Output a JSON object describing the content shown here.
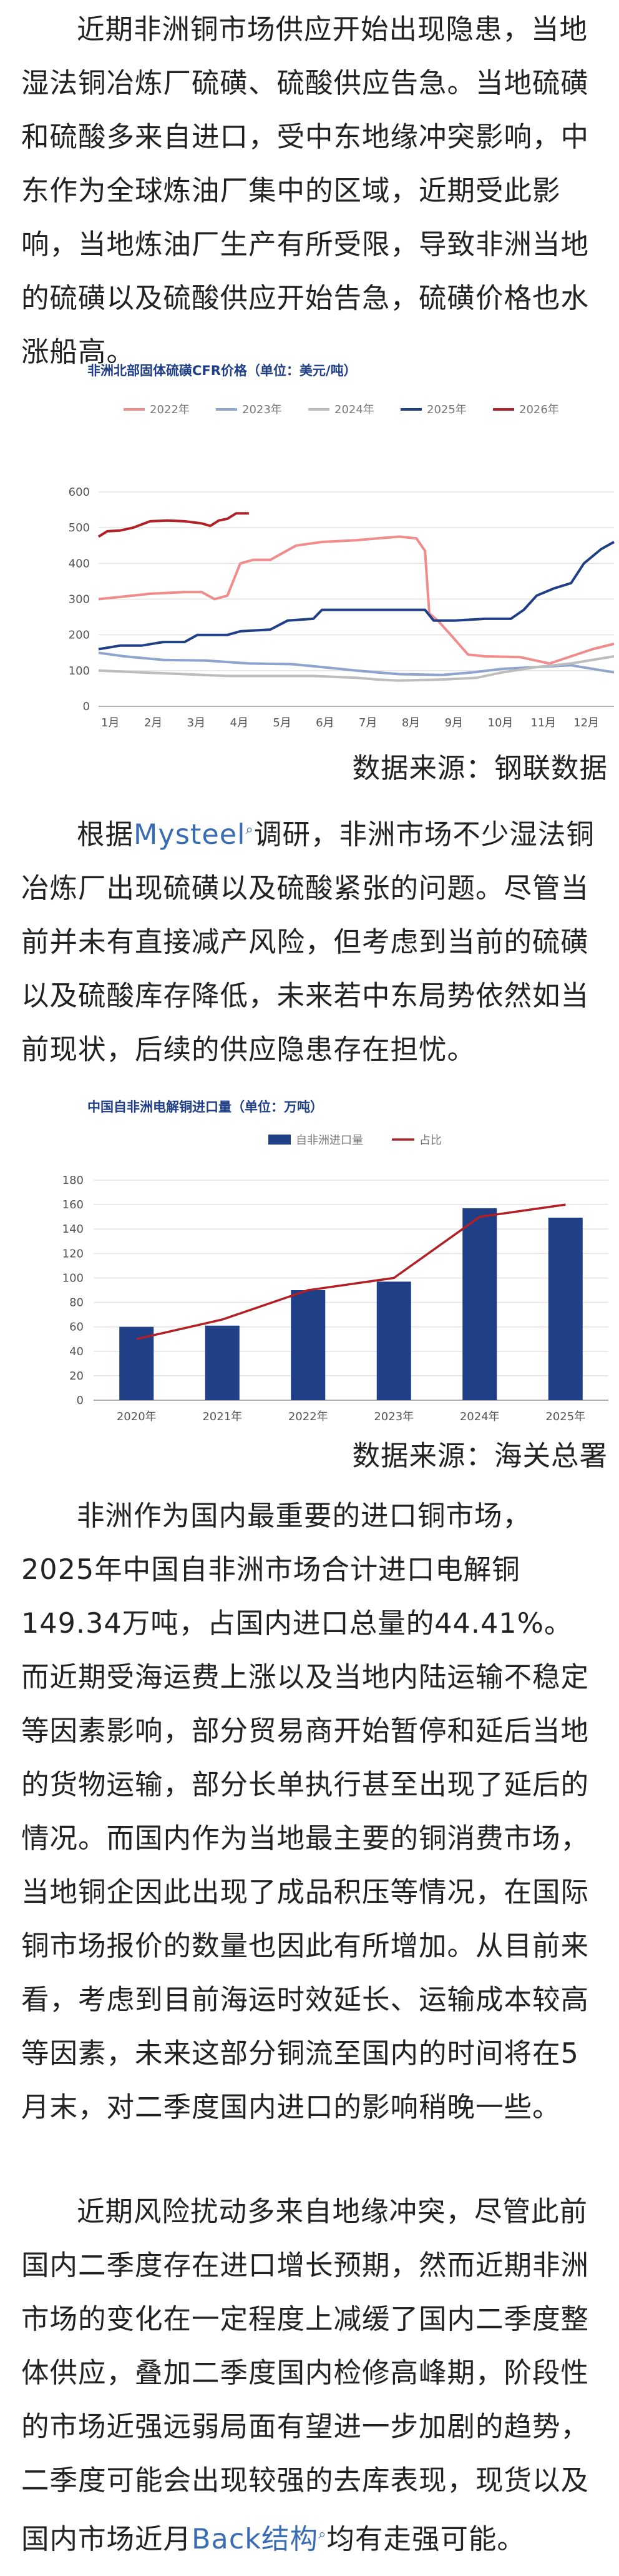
{
  "paragraphs": {
    "p1": "近期非洲铜市场供应开始出现隐患，当地湿法铜冶炼厂硫磺、硫酸供应告急。当地硫磺和硫酸多来自进口，受中东地缘冲突影响，中东作为全球炼油厂集中的区域，近期受此影响，当地炼油厂生产有所受限，导致非洲当地的硫磺以及硫酸供应开始告急，硫磺价格也水涨船高。",
    "p2_pre": "根据",
    "p2_link": "Mysteel",
    "p2_post": "调研，非洲市场不少湿法铜冶炼厂出现硫磺以及硫酸紧张的问题。尽管当前并未有直接减产风险，但考虑到当前的硫磺以及硫酸库存降低，未来若中东局势依然如当前现状，后续的供应隐患存在担忧。",
    "p3": "非洲作为国内最重要的进口铜市场，2025年中国自非洲市场合计进口电解铜149.34万吨，占国内进口总量的44.41%。而近期受海运费上涨以及当地内陆运输不稳定等因素影响，部分贸易商开始暂停和延后当地的货物运输，部分长单执行甚至出现了延后的情况。而国内作为当地最主要的铜消费市场，当地铜企因此出现了成品积压等情况，在国际铜市场报价的数量也因此有所增加。从目前来看，考虑到目前海运时效延长、运输成本较高等因素，未来这部分铜流至国内的时间将在5月末，对二季度国内进口的影响稍晚一些。",
    "p4_pre": "近期风险扰动多来自地缘冲突，尽管此前国内二季度存在进口增长预期，然而近期非洲市场的变化在一定程度上减缓了国内二季度整体供应，叠加二季度国内检修高峰期，阶段性的市场近强远弱局面有望进一步加剧的趋势，二季度可能会出现较强的去库表现，现货以及国内市场近月",
    "p4_link": "Back结构",
    "p4_post": "均有走强可能。"
  },
  "sources": {
    "s1": "数据来源：钢联数据",
    "s2": "数据来源：海关总署"
  },
  "chart_data": [
    {
      "type": "line",
      "title": "非洲北部固体硫磺CFR价格（单位：美元/吨）",
      "categories": [
        "1月",
        "2月",
        "3月",
        "4月",
        "5月",
        "6月",
        "7月",
        "8月",
        "9月",
        "10月",
        "11月",
        "12月"
      ],
      "yticks": [
        "0",
        "100",
        "200",
        "300",
        "400",
        "500",
        "600"
      ],
      "ylim": [
        0,
        600
      ],
      "grid": "horizontal",
      "legend": "top",
      "series": [
        {
          "name": "2022年",
          "color": "#f08c8c",
          "points": [
            [
              0,
              300
            ],
            [
              1.2,
              315
            ],
            [
              2,
              320
            ],
            [
              2.4,
              320
            ],
            [
              2.7,
              300
            ],
            [
              3,
              310
            ],
            [
              3.3,
              400
            ],
            [
              3.6,
              410
            ],
            [
              4,
              410
            ],
            [
              4.6,
              450
            ],
            [
              5.2,
              460
            ],
            [
              6,
              465
            ],
            [
              6.5,
              470
            ],
            [
              7,
              475
            ],
            [
              7.4,
              470
            ],
            [
              7.6,
              435
            ],
            [
              7.7,
              260
            ],
            [
              7.9,
              240
            ],
            [
              8.2,
              200
            ],
            [
              8.6,
              145
            ],
            [
              9,
              140
            ],
            [
              9.8,
              138
            ],
            [
              10.5,
              120
            ],
            [
              11,
              140
            ],
            [
              11.5,
              160
            ],
            [
              12,
              175
            ]
          ]
        },
        {
          "name": "2023年",
          "color": "#8fa3cf",
          "points": [
            [
              0,
              150
            ],
            [
              0.6,
              140
            ],
            [
              1.5,
              130
            ],
            [
              2.5,
              128
            ],
            [
              3.5,
              120
            ],
            [
              4.5,
              118
            ],
            [
              5.2,
              110
            ],
            [
              6,
              100
            ],
            [
              6.5,
              95
            ],
            [
              7,
              90
            ],
            [
              8,
              88
            ],
            [
              8.7,
              95
            ],
            [
              9.4,
              105
            ],
            [
              10.2,
              110
            ],
            [
              11,
              115
            ],
            [
              12,
              95
            ]
          ]
        },
        {
          "name": "2024年",
          "color": "#bdbdbd",
          "points": [
            [
              0,
              100
            ],
            [
              1,
              95
            ],
            [
              2,
              90
            ],
            [
              3,
              85
            ],
            [
              4,
              85
            ],
            [
              5,
              85
            ],
            [
              6,
              80
            ],
            [
              6.5,
              75
            ],
            [
              7,
              72
            ],
            [
              8,
              75
            ],
            [
              8.8,
              80
            ],
            [
              9.4,
              95
            ],
            [
              10.2,
              110
            ],
            [
              11,
              120
            ],
            [
              12,
              140
            ]
          ]
        },
        {
          "name": "2025年",
          "color": "#1f3f87",
          "points": [
            [
              0,
              160
            ],
            [
              0.5,
              170
            ],
            [
              1,
              170
            ],
            [
              1.5,
              180
            ],
            [
              2,
              180
            ],
            [
              2.3,
              200
            ],
            [
              3,
              200
            ],
            [
              3.3,
              210
            ],
            [
              4,
              215
            ],
            [
              4.4,
              240
            ],
            [
              5,
              245
            ],
            [
              5.2,
              270
            ],
            [
              6,
              270
            ],
            [
              7,
              270
            ],
            [
              7.6,
              270
            ],
            [
              7.8,
              240
            ],
            [
              8.3,
              240
            ],
            [
              9,
              245
            ],
            [
              9.6,
              245
            ],
            [
              9.9,
              270
            ],
            [
              10.2,
              310
            ],
            [
              10.6,
              330
            ],
            [
              11,
              345
            ],
            [
              11.3,
              400
            ],
            [
              11.7,
              440
            ],
            [
              12,
              460
            ]
          ]
        },
        {
          "name": "2026年",
          "color": "#b22025",
          "points": [
            [
              0,
              475
            ],
            [
              0.2,
              490
            ],
            [
              0.5,
              492
            ],
            [
              0.8,
              500
            ],
            [
              1.2,
              518
            ],
            [
              1.6,
              520
            ],
            [
              2,
              518
            ],
            [
              2.4,
              512
            ],
            [
              2.6,
              505
            ],
            [
              2.8,
              520
            ],
            [
              3,
              525
            ],
            [
              3.2,
              540
            ],
            [
              3.5,
              540
            ]
          ]
        }
      ]
    },
    {
      "type": "bar",
      "title": "中国自非洲电解铜进口量（单位：万吨）",
      "categories": [
        "2020年",
        "2021年",
        "2022年",
        "2023年",
        "2024年",
        "2025年"
      ],
      "yticks": [
        "0",
        "20",
        "40",
        "60",
        "80",
        "100",
        "120",
        "140",
        "160",
        "180"
      ],
      "ylim": [
        0,
        180
      ],
      "grid": "horizontal",
      "legend": "top",
      "series": [
        {
          "name": "自非洲进口量",
          "color": "#1f3f87",
          "values": [
            60,
            61,
            90,
            97,
            157,
            149.34
          ]
        },
        {
          "name": "占比",
          "color": "#b22025",
          "line_values": [
            50,
            66,
            90,
            100,
            150,
            160
          ]
        }
      ]
    }
  ],
  "icons": {
    "search_mark": "search-superscript-icon"
  }
}
